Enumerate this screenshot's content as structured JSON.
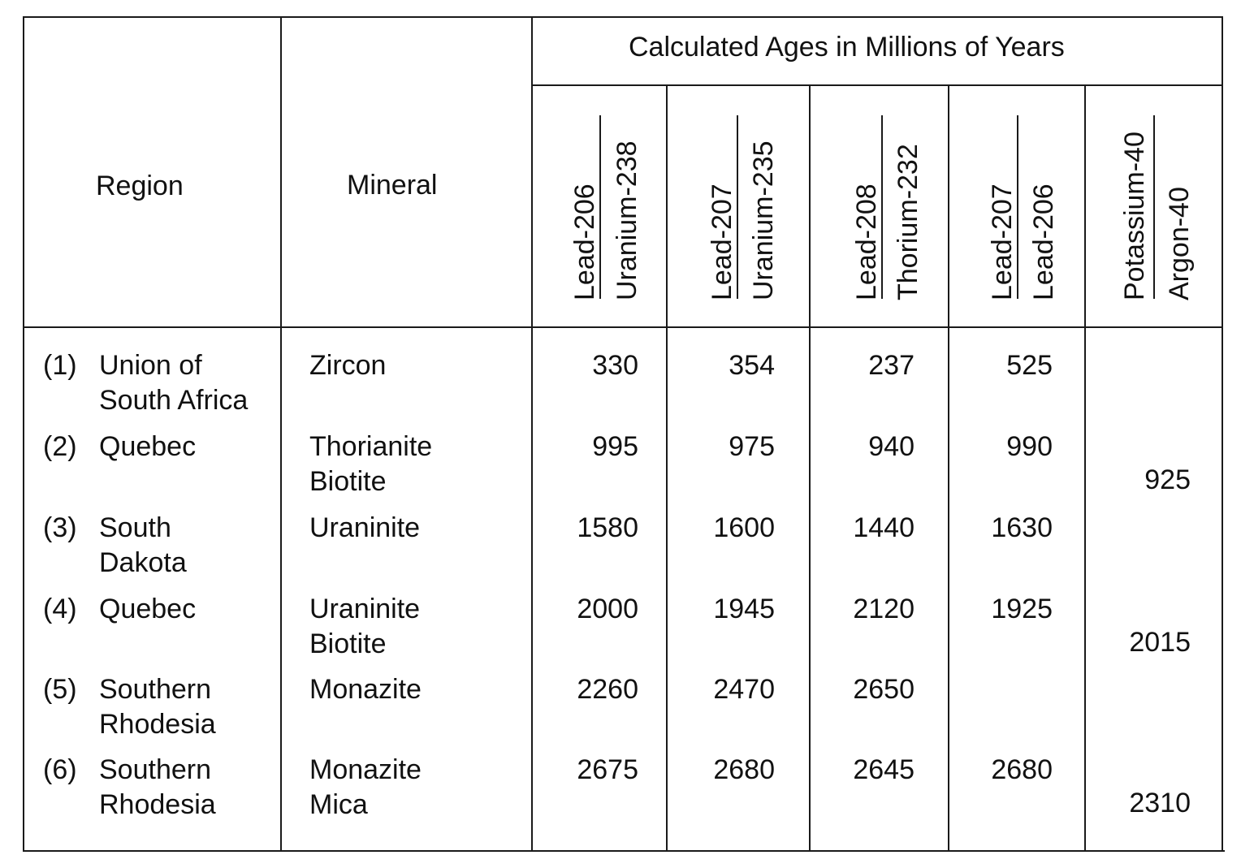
{
  "table": {
    "header": {
      "region": "Region",
      "mineral": "Mineral",
      "group": "Calculated Ages in Millions of Years",
      "columns": [
        {
          "numerator": "Lead-206",
          "denominator": "Uranium-238"
        },
        {
          "numerator": "Lead-207",
          "denominator": "Uranium-235"
        },
        {
          "numerator": "Lead-208",
          "denominator": "Thorium-232"
        },
        {
          "numerator": "Lead-207",
          "denominator": "Lead-206"
        },
        {
          "numerator": "Potassium-40",
          "denominator": "Argon-40"
        }
      ]
    },
    "rows": [
      {
        "index": "(1)",
        "region": [
          "Union of",
          "South Africa"
        ],
        "minerals": [
          "Zircon"
        ],
        "values": [
          "330",
          "354",
          "237",
          "525"
        ],
        "k_ar": ""
      },
      {
        "index": "(2)",
        "region": [
          "Quebec"
        ],
        "minerals": [
          "Thorianite",
          "Biotite"
        ],
        "values": [
          "995",
          "975",
          "940",
          "990"
        ],
        "k_ar": "925"
      },
      {
        "index": "(3)",
        "region": [
          "South",
          "Dakota"
        ],
        "minerals": [
          "Uraninite"
        ],
        "values": [
          "1580",
          "1600",
          "1440",
          "1630"
        ],
        "k_ar": ""
      },
      {
        "index": "(4)",
        "region": [
          "Quebec"
        ],
        "minerals": [
          "Uraninite",
          "Biotite"
        ],
        "values": [
          "2000",
          "1945",
          "2120",
          "1925"
        ],
        "k_ar": "2015"
      },
      {
        "index": "(5)",
        "region": [
          "Southern",
          "Rhodesia"
        ],
        "minerals": [
          "Monazite"
        ],
        "values": [
          "2260",
          "2470",
          "2650",
          ""
        ],
        "k_ar": ""
      },
      {
        "index": "(6)",
        "region": [
          "Southern",
          "Rhodesia"
        ],
        "minerals": [
          "Monazite",
          "Mica"
        ],
        "values": [
          "2675",
          "2680",
          "2645",
          "2680"
        ],
        "k_ar": "2310"
      }
    ]
  }
}
